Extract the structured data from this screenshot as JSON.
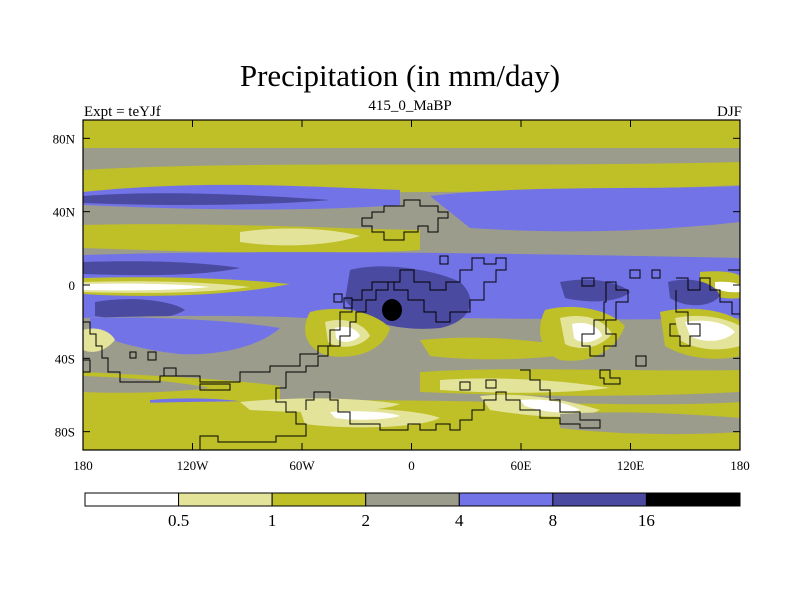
{
  "chart_data": {
    "type": "contour-map",
    "title": "Precipitation (in mm/day)",
    "left_label": "Expt = teYJf",
    "center_label": "415_0_MaBP",
    "right_label": "DJF",
    "x_ticks": [
      {
        "lon": -180,
        "label": "180"
      },
      {
        "lon": -120,
        "label": "120W"
      },
      {
        "lon": -60,
        "label": "60W"
      },
      {
        "lon": 0,
        "label": "0"
      },
      {
        "lon": 60,
        "label": "60E"
      },
      {
        "lon": 120,
        "label": "120E"
      },
      {
        "lon": 180,
        "label": "180"
      }
    ],
    "y_ticks": [
      {
        "lat": 80,
        "label": "80N"
      },
      {
        "lat": 40,
        "label": "40N"
      },
      {
        "lat": 0,
        "label": "0"
      },
      {
        "lat": -40,
        "label": "40S"
      },
      {
        "lat": -80,
        "label": "80S"
      }
    ],
    "xlim": [
      -180,
      180
    ],
    "ylim": [
      -90,
      90
    ],
    "units": "mm/day",
    "contour_levels": [
      "0.5",
      "1",
      "2",
      "4",
      "8",
      "16"
    ],
    "colors": [
      "#ffffff",
      "#e3e39a",
      "#bfbf28",
      "#9c9c8c",
      "#7373e8",
      "#4a4aa0",
      "#000000"
    ]
  }
}
